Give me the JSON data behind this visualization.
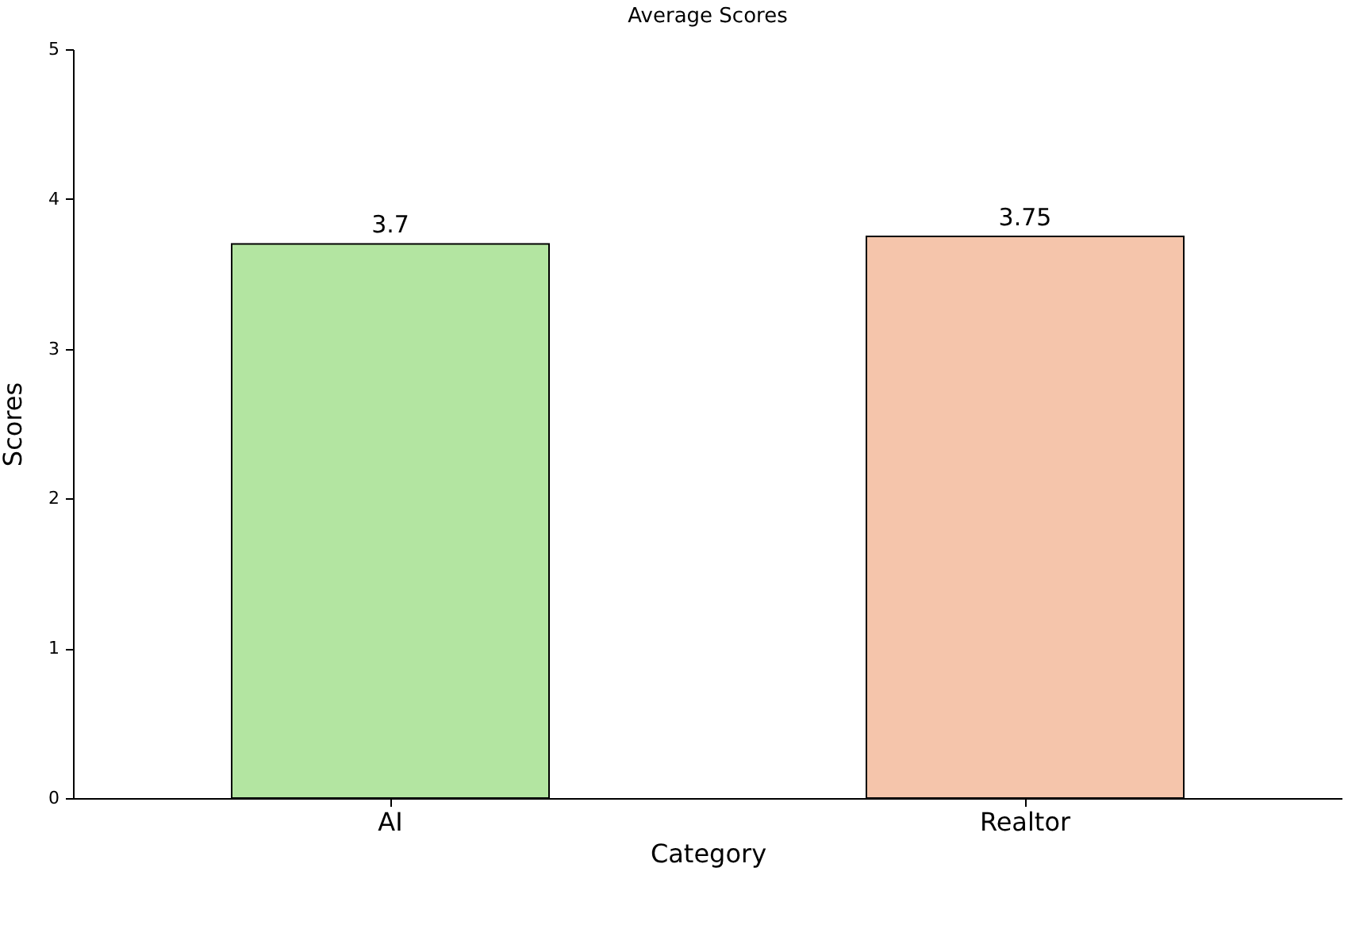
{
  "chart_data": {
    "type": "bar",
    "title": "Average Scores",
    "xlabel": "Category",
    "ylabel": "Scores",
    "categories": [
      "AI",
      "Realtor"
    ],
    "values": [
      3.7,
      3.75
    ],
    "colors": [
      "#b3e5a1",
      "#f5c5ab"
    ],
    "ylim": [
      0,
      5
    ],
    "yticks": [
      0,
      1,
      2,
      3,
      4,
      5
    ],
    "data_labels": true
  }
}
